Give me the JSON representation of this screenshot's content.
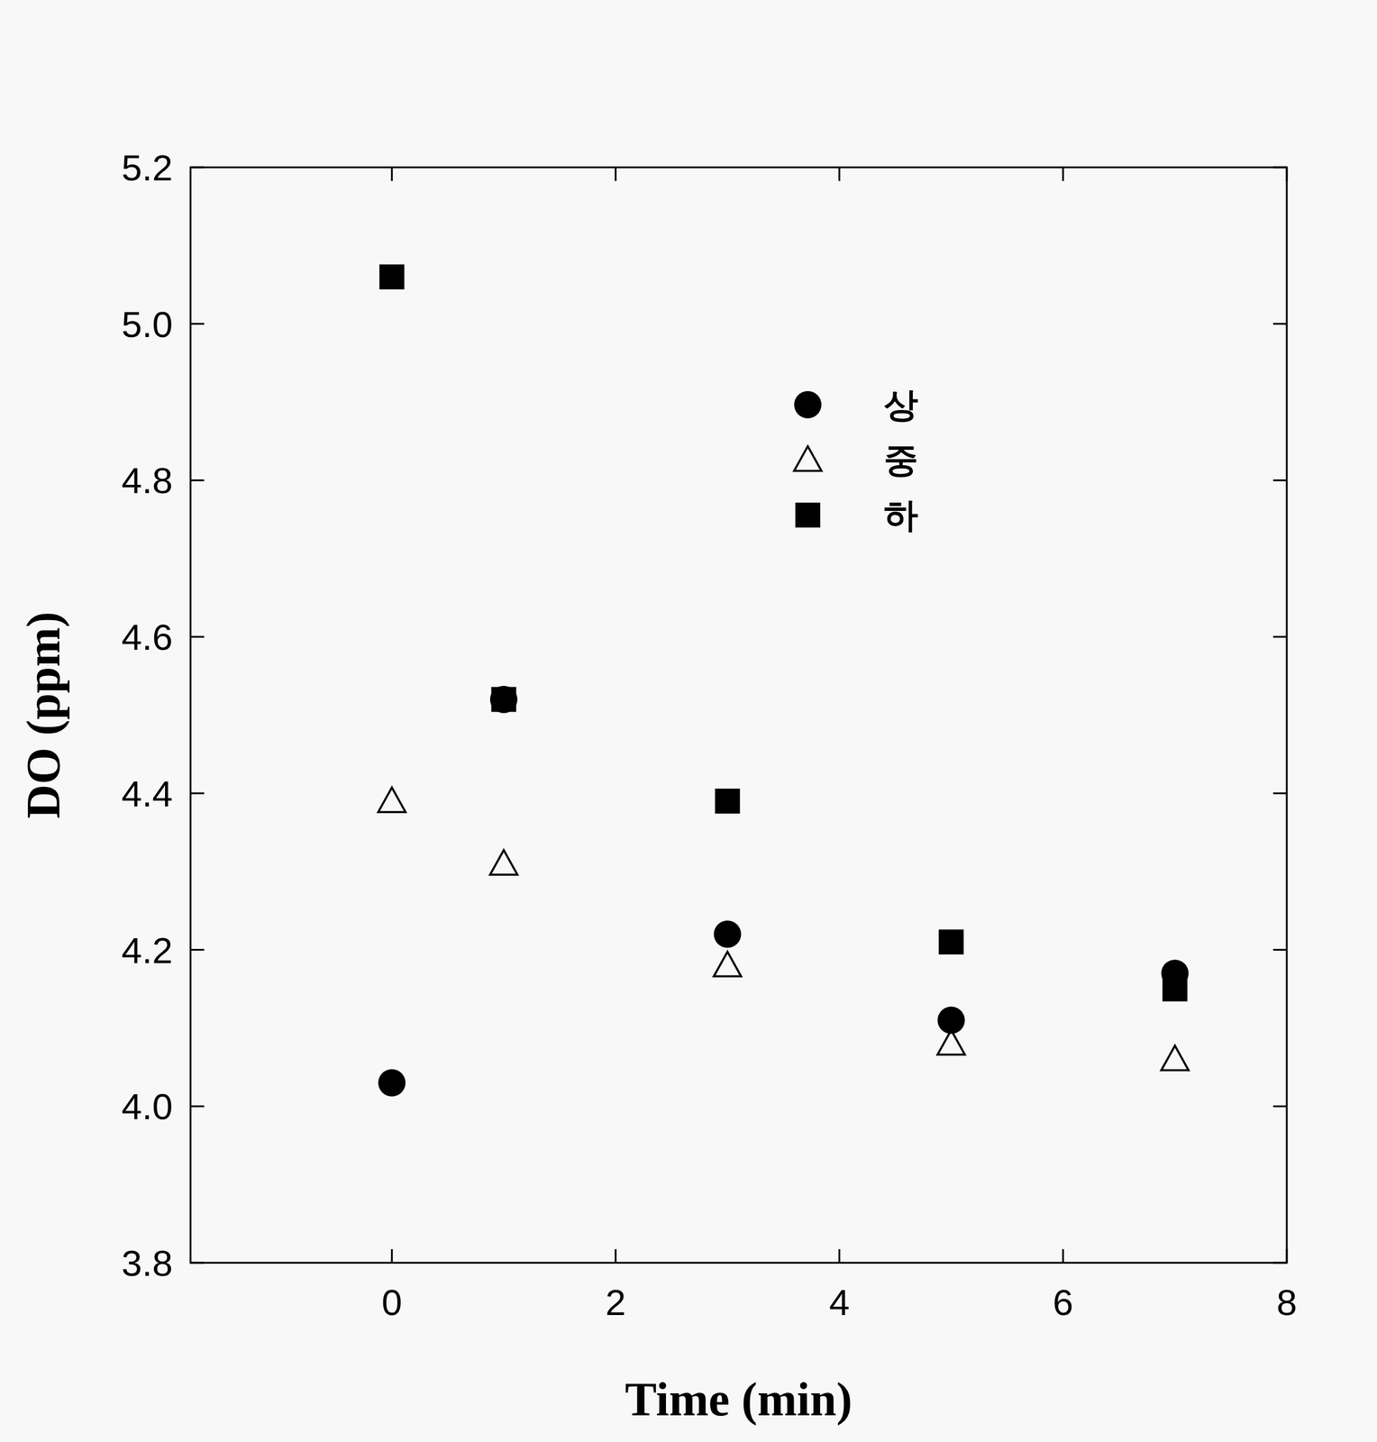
{
  "chart_data": {
    "type": "scatter",
    "x_label": "Time (min)",
    "y_label": "DO (ppm)",
    "x": [
      0,
      1,
      3,
      5,
      7
    ],
    "series": [
      {
        "name": "상",
        "color": "#000000",
        "marker": "circle",
        "values": [
          4.03,
          4.52,
          4.22,
          4.11,
          4.17
        ]
      },
      {
        "name": "중",
        "color": "#000000",
        "marker": "triangle-open",
        "values": [
          4.39,
          4.31,
          4.18,
          4.08,
          4.06
        ]
      },
      {
        "name": "하",
        "color": "#000000",
        "marker": "square",
        "values": [
          5.06,
          4.52,
          4.39,
          4.21,
          4.15
        ]
      }
    ],
    "xlim": [
      -1.8,
      8
    ],
    "xticks": [
      0,
      2,
      4,
      6,
      8
    ],
    "ylim": [
      3.8,
      5.2
    ],
    "yticks": [
      3.8,
      4.0,
      4.2,
      4.4,
      4.6,
      4.8,
      5.0,
      5.2
    ],
    "legend": "top-right",
    "grid": false
  }
}
